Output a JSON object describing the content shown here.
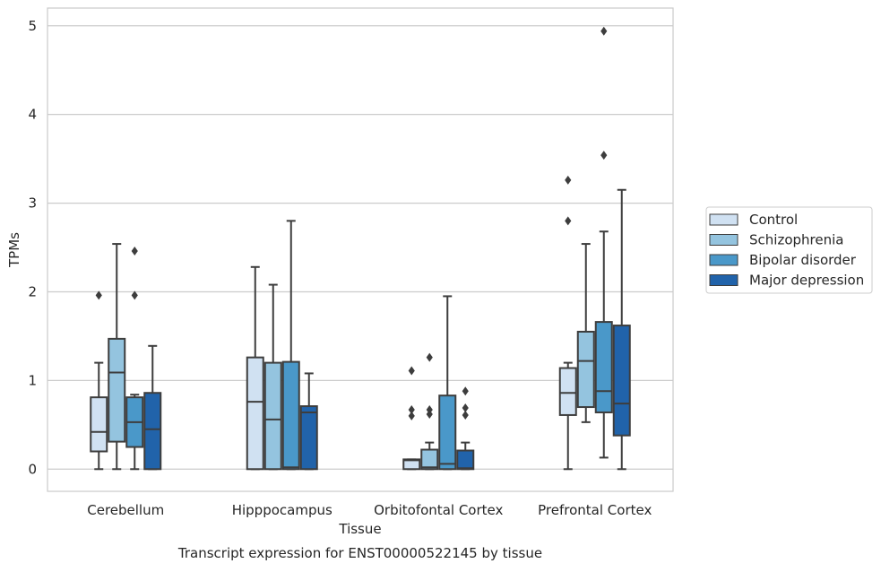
{
  "chart_data": {
    "type": "box",
    "title": "Transcript expression for ENST00000522145 by tissue",
    "xlabel": "Tissue",
    "ylabel": "TPMs",
    "ylim": [
      -0.25,
      5.2
    ],
    "yticks": [
      0,
      1,
      2,
      3,
      4,
      5
    ],
    "grid": true,
    "legend_position": "right",
    "categories": [
      "Cerebellum",
      "Hipppocampus",
      "Orbitofontal Cortex",
      "Prefrontal Cortex"
    ],
    "series": [
      {
        "name": "Control",
        "color": "#d0e1f2",
        "boxes": [
          {
            "whislo": 0,
            "q1": 0.2,
            "med": 0.42,
            "q3": 0.81,
            "whishi": 1.2,
            "fliers": [
              1.96
            ]
          },
          {
            "whislo": 0,
            "q1": 0,
            "med": 0.76,
            "q3": 1.26,
            "whishi": 2.28,
            "fliers": []
          },
          {
            "whislo": 0,
            "q1": 0,
            "med": 0.1,
            "q3": 0.11,
            "whishi": 0.11,
            "fliers": [
              0.6,
              0.67,
              1.11
            ]
          },
          {
            "whislo": 0,
            "q1": 0.61,
            "med": 0.86,
            "q3": 1.14,
            "whishi": 1.2,
            "fliers": [
              2.8,
              3.26
            ]
          }
        ]
      },
      {
        "name": "Schizophrenia",
        "color": "#94c4df",
        "boxes": [
          {
            "whislo": 0,
            "q1": 0.31,
            "med": 1.09,
            "q3": 1.47,
            "whishi": 2.54,
            "fliers": []
          },
          {
            "whislo": 0,
            "q1": 0,
            "med": 0.56,
            "q3": 1.2,
            "whishi": 2.08,
            "fliers": []
          },
          {
            "whislo": 0,
            "q1": 0,
            "med": 0.02,
            "q3": 0.22,
            "whishi": 0.3,
            "fliers": [
              0.62,
              0.67,
              1.26
            ]
          },
          {
            "whislo": 0.53,
            "q1": 0.7,
            "med": 1.22,
            "q3": 1.55,
            "whishi": 2.54,
            "fliers": []
          }
        ]
      },
      {
        "name": "Bipolar disorder",
        "color": "#4a98c9",
        "boxes": [
          {
            "whislo": 0,
            "q1": 0.25,
            "med": 0.53,
            "q3": 0.81,
            "whishi": 0.84,
            "fliers": [
              1.96,
              2.46
            ]
          },
          {
            "whislo": 0,
            "q1": 0,
            "med": 0.02,
            "q3": 1.21,
            "whishi": 2.8,
            "fliers": []
          },
          {
            "whislo": 0,
            "q1": 0,
            "med": 0.06,
            "q3": 0.83,
            "whishi": 1.95,
            "fliers": []
          },
          {
            "whislo": 0.13,
            "q1": 0.64,
            "med": 0.88,
            "q3": 1.66,
            "whishi": 2.68,
            "fliers": [
              3.54,
              4.94
            ]
          }
        ]
      },
      {
        "name": "Major depression",
        "color": "#2163aa",
        "boxes": [
          {
            "whislo": 0,
            "q1": 0,
            "med": 0.45,
            "q3": 0.86,
            "whishi": 1.39,
            "fliers": []
          },
          {
            "whislo": 0,
            "q1": 0,
            "med": 0.64,
            "q3": 0.71,
            "whishi": 1.08,
            "fliers": []
          },
          {
            "whislo": 0,
            "q1": 0,
            "med": 0.01,
            "q3": 0.21,
            "whishi": 0.3,
            "fliers": [
              0.61,
              0.69,
              0.88
            ]
          },
          {
            "whislo": 0,
            "q1": 0.38,
            "med": 0.74,
            "q3": 1.62,
            "whishi": 3.15,
            "fliers": []
          }
        ]
      }
    ]
  }
}
